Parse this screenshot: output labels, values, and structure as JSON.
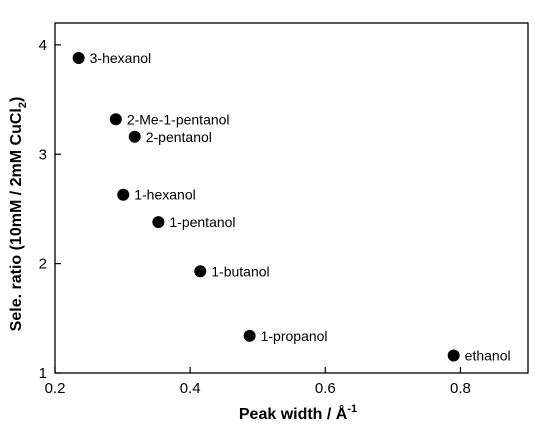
{
  "chart_data": {
    "type": "scatter",
    "title": "",
    "xlabel": "Peak width / Å",
    "xlabel_superscript": "-1",
    "ylabel": "Sele. ratio (10mM / 2mM CuCl",
    "ylabel_subscript": "2",
    "ylabel_suffix": ")",
    "xlim": [
      0.2,
      0.9
    ],
    "ylim": [
      1,
      4.2
    ],
    "xticks": [
      0.2,
      0.4,
      0.6,
      0.8
    ],
    "xtick_labels": [
      "0.2",
      "0.4",
      "0.6",
      "0.8"
    ],
    "yticks": [
      1,
      2,
      3,
      4
    ],
    "ytick_labels": [
      "1",
      "2",
      "3",
      "4"
    ],
    "grid": false,
    "marker_color": "#000000",
    "points": [
      {
        "label": "3-hexanol",
        "x": 0.235,
        "y": 3.88
      },
      {
        "label": "2-Me-1-pentanol",
        "x": 0.29,
        "y": 3.32
      },
      {
        "label": "2-pentanol",
        "x": 0.318,
        "y": 3.16
      },
      {
        "label": "1-hexanol",
        "x": 0.301,
        "y": 2.63
      },
      {
        "label": "1-pentanol",
        "x": 0.353,
        "y": 2.38
      },
      {
        "label": "1-butanol",
        "x": 0.415,
        "y": 1.93
      },
      {
        "label": "1-propanol",
        "x": 0.488,
        "y": 1.34
      },
      {
        "label": "ethanol",
        "x": 0.79,
        "y": 1.16
      }
    ]
  }
}
